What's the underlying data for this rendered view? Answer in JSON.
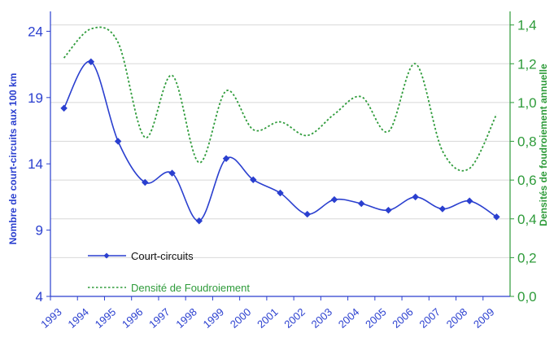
{
  "chart_data": {
    "type": "line",
    "x": [
      "1993",
      "1994",
      "1995",
      "1996",
      "1997",
      "1998",
      "1999",
      "2000",
      "2001",
      "2002",
      "2003",
      "2004",
      "2005",
      "2006",
      "2007",
      "2008",
      "2009"
    ],
    "xlabel": "",
    "ylabel_left": "Nombre de court-circuits aux 100 km",
    "ylabel_right": "Densités de foudroiement annuelle",
    "y_left_ticks": [
      "4",
      "9",
      "14",
      "19",
      "24"
    ],
    "y_right_ticks": [
      "0,0",
      "0,2",
      "0,4",
      "0,6",
      "0,8",
      "1,0",
      "1,2",
      "1,4"
    ],
    "ylim_left": [
      4,
      25.5
    ],
    "ylim_right": [
      0,
      1.47
    ],
    "grid": "horizontal",
    "legend_position": "bottom-left",
    "series": [
      {
        "name": "Court-circuits",
        "axis": "left",
        "color": "#2a3fcf",
        "style": "solid-with-diamond-markers",
        "x_positions": [
          0.5,
          1.5,
          2.5,
          3.5,
          4.5,
          5.5,
          6.5,
          7.5,
          8.5,
          9.5,
          10.5,
          11.5,
          12.5,
          13.5,
          14.5,
          15.5,
          16.5
        ],
        "values": [
          18.2,
          21.7,
          15.7,
          12.6,
          13.3,
          9.7,
          14.4,
          12.8,
          11.8,
          10.2,
          11.3,
          11.0,
          10.5,
          11.5,
          10.6,
          11.2,
          10.0
        ]
      },
      {
        "name": "Densité de Foudroiement",
        "axis": "right",
        "color": "#2e9b3a",
        "style": "dotted",
        "x_positions": [
          0.5,
          1.5,
          2.5,
          3.5,
          4.5,
          5.5,
          6.5,
          7.5,
          8.5,
          9.5,
          10.5,
          11.5,
          12.5,
          13.5,
          14.5,
          15.5,
          16.5
        ],
        "values": [
          1.23,
          1.38,
          1.31,
          0.82,
          1.14,
          0.69,
          1.06,
          0.86,
          0.9,
          0.83,
          0.94,
          1.03,
          0.85,
          1.2,
          0.75,
          0.66,
          0.94
        ]
      }
    ]
  }
}
